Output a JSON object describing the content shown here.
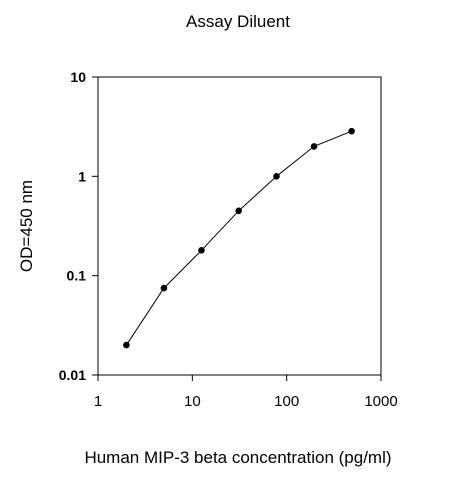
{
  "chart_data": {
    "type": "line",
    "title": "Assay Diluent",
    "xlabel": "Human MIP-3 beta  concentration (pg/ml)",
    "ylabel": "OD=450 nm",
    "x_scale": "log",
    "y_scale": "log",
    "xlim": [
      1,
      1000
    ],
    "ylim": [
      0.01,
      10
    ],
    "x_ticks": [
      1,
      10,
      100,
      1000
    ],
    "x_tick_labels": [
      "1",
      "10",
      "100",
      "1000"
    ],
    "y_ticks": [
      0.01,
      0.1,
      1,
      10
    ],
    "y_tick_labels": [
      "0.01",
      "0.1",
      "1",
      "10"
    ],
    "grid": false,
    "legend": "none",
    "series": [
      {
        "x": [
          2,
          5,
          12.5,
          31,
          78,
          195,
          488
        ],
        "y": [
          0.02,
          0.075,
          0.18,
          0.45,
          1.0,
          2.0,
          2.85
        ],
        "color": "#000000",
        "marker": "circle"
      }
    ]
  }
}
